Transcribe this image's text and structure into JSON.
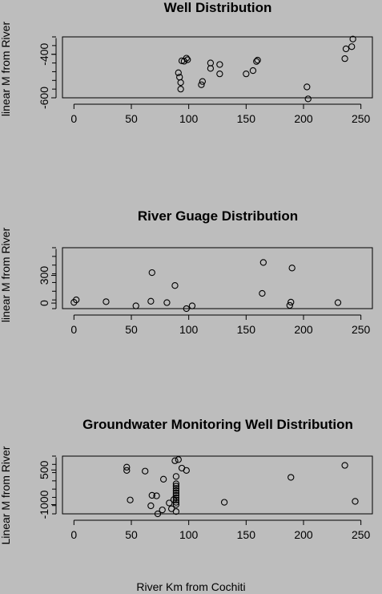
{
  "page": {
    "background": "#bdbdbd",
    "xlabel": "River Km from Cochiti"
  },
  "chart_data": [
    {
      "type": "scatter",
      "title": "Well Distribution",
      "xlabel": "",
      "ylabel": "linear M from River",
      "xlim": [
        -10,
        260
      ],
      "ylim": [
        -600,
        -320
      ],
      "xticks": [
        0,
        50,
        100,
        150,
        200,
        250
      ],
      "yticks": [
        -600,
        -400
      ],
      "yticklabels": [
        "-600",
        "-400"
      ],
      "grid": false,
      "points": [
        {
          "x": 91,
          "y": -485
        },
        {
          "x": 92,
          "y": -505
        },
        {
          "x": 93,
          "y": -530
        },
        {
          "x": 93,
          "y": -560
        },
        {
          "x": 94,
          "y": -430
        },
        {
          "x": 96,
          "y": -432
        },
        {
          "x": 98,
          "y": -418
        },
        {
          "x": 99,
          "y": -425
        },
        {
          "x": 111,
          "y": -540
        },
        {
          "x": 112,
          "y": -525
        },
        {
          "x": 119,
          "y": -440
        },
        {
          "x": 119,
          "y": -465
        },
        {
          "x": 127,
          "y": -447
        },
        {
          "x": 127,
          "y": -490
        },
        {
          "x": 150,
          "y": -490
        },
        {
          "x": 156,
          "y": -475
        },
        {
          "x": 159,
          "y": -433
        },
        {
          "x": 160,
          "y": -427
        },
        {
          "x": 203,
          "y": -550
        },
        {
          "x": 204,
          "y": -605
        },
        {
          "x": 236,
          "y": -420
        },
        {
          "x": 237,
          "y": -375
        },
        {
          "x": 242,
          "y": -365
        },
        {
          "x": 243,
          "y": -330
        }
      ]
    },
    {
      "type": "scatter",
      "title": "River Guage Distribution",
      "xlabel": "",
      "ylabel": "linear M from River",
      "xlim": [
        -10,
        260
      ],
      "ylim": [
        -60,
        600
      ],
      "xticks": [
        0,
        50,
        100,
        150,
        200,
        250
      ],
      "yticks": [
        0,
        300
      ],
      "yticklabels": [
        "0",
        "300"
      ],
      "grid": false,
      "points": [
        {
          "x": 0,
          "y": 8
        },
        {
          "x": 2,
          "y": 35
        },
        {
          "x": 28,
          "y": 15
        },
        {
          "x": 54,
          "y": -30
        },
        {
          "x": 67,
          "y": 20
        },
        {
          "x": 68,
          "y": 330
        },
        {
          "x": 81,
          "y": 5
        },
        {
          "x": 88,
          "y": 190
        },
        {
          "x": 98,
          "y": -60
        },
        {
          "x": 103,
          "y": -30
        },
        {
          "x": 164,
          "y": 105
        },
        {
          "x": 165,
          "y": 440
        },
        {
          "x": 188,
          "y": -25
        },
        {
          "x": 189,
          "y": 10
        },
        {
          "x": 190,
          "y": 380
        },
        {
          "x": 230,
          "y": 5
        }
      ]
    },
    {
      "type": "scatter",
      "title": "Groundwater Monitoring Well Distribution",
      "xlabel": "",
      "ylabel": "Linear M from River",
      "xlim": [
        -10,
        260
      ],
      "ylim": [
        -1400,
        1100
      ],
      "xticks": [
        0,
        50,
        100,
        150,
        200,
        250
      ],
      "yticks": [
        -1000,
        500
      ],
      "yticklabels": [
        "-1000",
        "500"
      ],
      "grid": false,
      "points": [
        {
          "x": 46,
          "y": 480
        },
        {
          "x": 46,
          "y": 620
        },
        {
          "x": 49,
          "y": -800
        },
        {
          "x": 62,
          "y": 450
        },
        {
          "x": 67,
          "y": -1050
        },
        {
          "x": 68,
          "y": -600
        },
        {
          "x": 72,
          "y": -620
        },
        {
          "x": 73,
          "y": -1400
        },
        {
          "x": 77,
          "y": -1230
        },
        {
          "x": 78,
          "y": 100
        },
        {
          "x": 83,
          "y": -930
        },
        {
          "x": 85,
          "y": -1180
        },
        {
          "x": 87,
          "y": -780
        },
        {
          "x": 88,
          "y": 900
        },
        {
          "x": 89,
          "y": 220
        },
        {
          "x": 89,
          "y": -100
        },
        {
          "x": 89,
          "y": -200
        },
        {
          "x": 89,
          "y": -300
        },
        {
          "x": 89,
          "y": -400
        },
        {
          "x": 89,
          "y": -500
        },
        {
          "x": 89,
          "y": -600
        },
        {
          "x": 89,
          "y": -700
        },
        {
          "x": 89,
          "y": -800
        },
        {
          "x": 89,
          "y": -900
        },
        {
          "x": 89,
          "y": -1000
        },
        {
          "x": 89,
          "y": -1300
        },
        {
          "x": 91,
          "y": 950
        },
        {
          "x": 94,
          "y": 580
        },
        {
          "x": 98,
          "y": 480
        },
        {
          "x": 131,
          "y": -900
        },
        {
          "x": 189,
          "y": 180
        },
        {
          "x": 236,
          "y": 700
        },
        {
          "x": 245,
          "y": -860
        }
      ]
    }
  ]
}
